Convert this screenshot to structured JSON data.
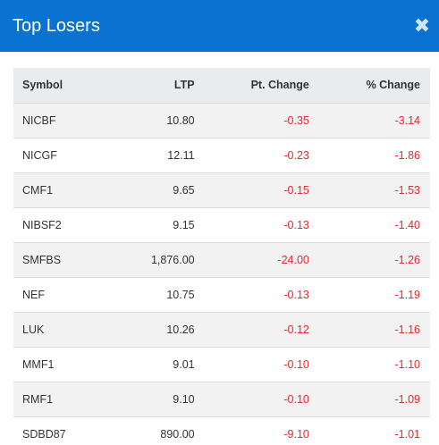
{
  "modal": {
    "title": "Top Losers",
    "close_glyph": "✖",
    "close_icon": "close-icon"
  },
  "colors": {
    "header_bg": "#0a73d1",
    "negative": "#e8262d",
    "table_header_bg": "#eaebed",
    "row_stripe": "#f2f2f2"
  },
  "table": {
    "headers": {
      "symbol": "Symbol",
      "ltp": "LTP",
      "pt_change": "Pt. Change",
      "pct_change": "% Change"
    },
    "rows": [
      {
        "symbol": "NICBF",
        "ltp": "10.80",
        "pt_change": "-0.35",
        "pct_change": "-3.14"
      },
      {
        "symbol": "NICGF",
        "ltp": "12.11",
        "pt_change": "-0.23",
        "pct_change": "-1.86"
      },
      {
        "symbol": "CMF1",
        "ltp": "9.65",
        "pt_change": "-0.15",
        "pct_change": "-1.53"
      },
      {
        "symbol": "NIBSF2",
        "ltp": "9.15",
        "pt_change": "-0.13",
        "pct_change": "-1.40"
      },
      {
        "symbol": "SMFBS",
        "ltp": "1,876.00",
        "pt_change": "-24.00",
        "pct_change": "-1.26"
      },
      {
        "symbol": "NEF",
        "ltp": "10.75",
        "pt_change": "-0.13",
        "pct_change": "-1.19"
      },
      {
        "symbol": "LUK",
        "ltp": "10.26",
        "pt_change": "-0.12",
        "pct_change": "-1.16"
      },
      {
        "symbol": "MMF1",
        "ltp": "9.01",
        "pt_change": "-0.10",
        "pct_change": "-1.10"
      },
      {
        "symbol": "RMF1",
        "ltp": "9.10",
        "pt_change": "-0.10",
        "pct_change": "-1.09"
      },
      {
        "symbol": "SDBD87",
        "ltp": "890.00",
        "pt_change": "-9.10",
        "pct_change": "-1.01"
      }
    ]
  }
}
